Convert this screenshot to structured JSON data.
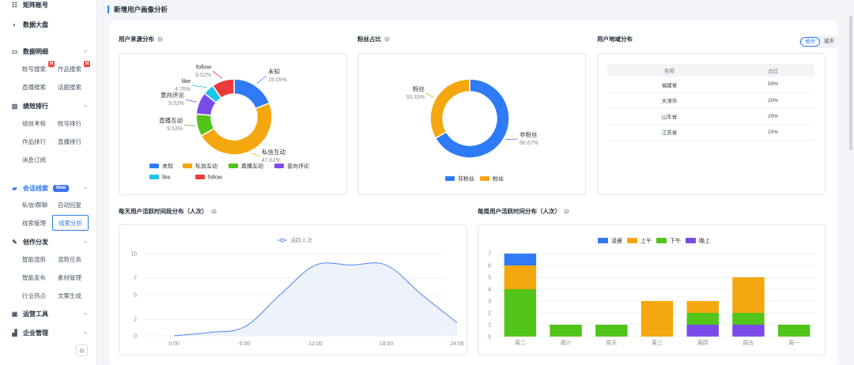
{
  "sidebar": {
    "groups": {
      "matrix": "矩阵账号",
      "dashboard": "数据大盘",
      "detail": "数据明细",
      "ranking": "绩效排行",
      "leads": "会话线索",
      "creation": "创作分发",
      "ops": "运营工具",
      "enterprise": "企业管理"
    },
    "new_tag": "New",
    "h_badge": "H",
    "items": {
      "account_search": "账号搜索",
      "works_search": "作品搜索",
      "live_search": "直播搜索",
      "topic_search": "话题搜索",
      "perf_review": "绩效考核",
      "account_rank": "账号排行",
      "works_rank": "作品排行",
      "live_rank": "直播排行",
      "msg_sub": "消息订阅",
      "private_group": "私信/群聊",
      "auto_reply": "自动回复",
      "lead_mgmt": "线索管理",
      "lead_analysis": "线索分析",
      "smart_edit": "智能混剪",
      "edit_task": "混剪任务",
      "smart_publish": "智能发布",
      "material_mgmt": "素材管理",
      "industry_hot": "行业热点",
      "copy_gen": "文案生成"
    },
    "collapse_glyph": "⊟"
  },
  "page": {
    "title": "新增用户画像分析"
  },
  "source_card": {
    "title": "用户来源分布",
    "chart_data": {
      "type": "pie",
      "slices": [
        {
          "name": "未知",
          "value": 19.05,
          "label": "19.05%",
          "color": "#2f7bf5"
        },
        {
          "name": "私信互动",
          "value": 47.62,
          "label": "47.62%",
          "color": "#f5a70f"
        },
        {
          "name": "直播互动",
          "value": 9.53,
          "label": "9.53%",
          "color": "#52c41a"
        },
        {
          "name": "意向评论",
          "value": 9.52,
          "label": "9.52%",
          "color": "#7b4be8"
        },
        {
          "name": "like",
          "value": 4.76,
          "label": "4.76%",
          "color": "#1fc4e6"
        },
        {
          "name": "follow",
          "value": 9.52,
          "label": "9.52%",
          "color": "#ea3b3b"
        }
      ]
    }
  },
  "fans_card": {
    "title": "粉丝占比",
    "chart_data": {
      "type": "pie",
      "slices": [
        {
          "name": "非粉丝",
          "value": 66.67,
          "label": "66.67%",
          "color": "#2f7bf5"
        },
        {
          "name": "粉丝",
          "value": 33.33,
          "label": "33.33%",
          "color": "#f5a70f"
        }
      ]
    }
  },
  "region_card": {
    "title": "用户地域分布",
    "toggle": {
      "province": "省份",
      "city": "城市"
    },
    "columns": [
      "名称",
      "占比"
    ],
    "rows": [
      [
        "福建省",
        "50%"
      ],
      [
        "天津市",
        "20%"
      ],
      [
        "山东省",
        "20%"
      ],
      [
        "江苏省",
        "10%"
      ]
    ]
  },
  "daily_card": {
    "title": "每天用户活跃时间段分布（人次）",
    "chart_data": {
      "type": "area",
      "series_name": "活跃人次",
      "x_ticks": [
        "0:00",
        "6:00",
        "12:00",
        "18:00",
        "24:00"
      ],
      "y_ticks": [
        "0",
        "2",
        "5",
        "7",
        "10"
      ],
      "ylim": [
        0,
        10
      ],
      "xlim": [
        0,
        24
      ],
      "points": [
        [
          0,
          0
        ],
        [
          3,
          0.4
        ],
        [
          6,
          1.1
        ],
        [
          9,
          5
        ],
        [
          12,
          8.6
        ],
        [
          15,
          8.6
        ],
        [
          18,
          8.6
        ],
        [
          21,
          5
        ],
        [
          24,
          1.6
        ]
      ],
      "color": "#4a86f0"
    }
  },
  "weekly_card": {
    "title": "每周用户活跃时间分布（人次）",
    "chart_data": {
      "type": "bar",
      "stacked": true,
      "categories": [
        "周二",
        "周六",
        "周天",
        "周三",
        "周四",
        "周五",
        "周一"
      ],
      "ylim": [
        0,
        7
      ],
      "y_ticks": [
        "0",
        "1",
        "2",
        "3",
        "4",
        "5",
        "6",
        "7"
      ],
      "series": [
        {
          "name": "凌晨",
          "color": "#2f7bf5",
          "values": [
            1,
            0,
            0,
            0,
            0,
            0,
            0
          ]
        },
        {
          "name": "上午",
          "color": "#f5a70f",
          "values": [
            2,
            0,
            0,
            3,
            1,
            3,
            0
          ]
        },
        {
          "name": "下午",
          "color": "#52c41a",
          "values": [
            4,
            1,
            1,
            0,
            1,
            1,
            1
          ]
        },
        {
          "name": "晚上",
          "color": "#7b4be8",
          "values": [
            0,
            0,
            0,
            0,
            1,
            1,
            0
          ]
        }
      ]
    }
  }
}
